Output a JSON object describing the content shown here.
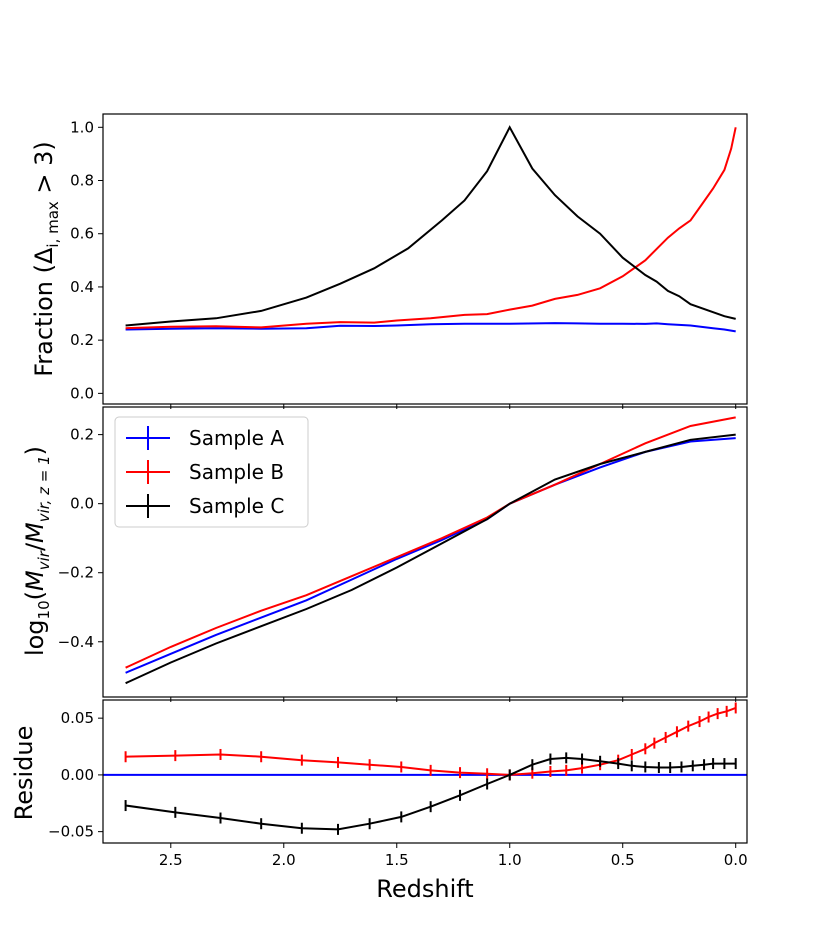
{
  "chart_data": [
    {
      "type": "line",
      "ylabel": "Fraction (Δ_{i, max} > 3)",
      "ylim": [
        -0.04,
        1.05
      ],
      "xlim": [
        2.8,
        -0.05
      ],
      "yticks": [
        "0.0",
        "0.2",
        "0.4",
        "0.6",
        "0.8",
        "1.0"
      ],
      "series": [
        {
          "name": "Sample A",
          "color": "#0000ff",
          "x": [
            2.7,
            2.5,
            2.3,
            2.1,
            1.9,
            1.75,
            1.6,
            1.5,
            1.35,
            1.2,
            1.0,
            0.8,
            0.7,
            0.6,
            0.5,
            0.4,
            0.35,
            0.3,
            0.2,
            0.1,
            0.05,
            0.0
          ],
          "y": [
            0.24,
            0.243,
            0.245,
            0.243,
            0.245,
            0.254,
            0.253,
            0.255,
            0.26,
            0.262,
            0.262,
            0.264,
            0.263,
            0.262,
            0.262,
            0.261,
            0.263,
            0.26,
            0.255,
            0.245,
            0.24,
            0.233
          ]
        },
        {
          "name": "Sample B",
          "color": "#ff0000",
          "x": [
            2.7,
            2.5,
            2.3,
            2.1,
            1.9,
            1.75,
            1.6,
            1.5,
            1.35,
            1.2,
            1.1,
            1.0,
            0.9,
            0.8,
            0.7,
            0.6,
            0.5,
            0.4,
            0.3,
            0.25,
            0.2,
            0.15,
            0.1,
            0.05,
            0.02,
            0.0
          ],
          "y": [
            0.245,
            0.25,
            0.252,
            0.248,
            0.262,
            0.268,
            0.266,
            0.274,
            0.282,
            0.295,
            0.298,
            0.315,
            0.33,
            0.355,
            0.37,
            0.395,
            0.44,
            0.5,
            0.585,
            0.62,
            0.65,
            0.71,
            0.77,
            0.84,
            0.92,
            1.0
          ]
        },
        {
          "name": "Sample C",
          "color": "#000000",
          "x": [
            2.7,
            2.5,
            2.3,
            2.1,
            1.9,
            1.75,
            1.6,
            1.45,
            1.3,
            1.2,
            1.1,
            1.0,
            0.9,
            0.8,
            0.7,
            0.6,
            0.5,
            0.4,
            0.35,
            0.3,
            0.25,
            0.2,
            0.1,
            0.05,
            0.0
          ],
          "y": [
            0.255,
            0.27,
            0.282,
            0.31,
            0.36,
            0.412,
            0.47,
            0.545,
            0.65,
            0.725,
            0.835,
            1.0,
            0.845,
            0.745,
            0.665,
            0.6,
            0.51,
            0.445,
            0.42,
            0.385,
            0.365,
            0.335,
            0.305,
            0.29,
            0.28
          ]
        }
      ]
    },
    {
      "type": "line",
      "ylabel": "log_{10}(M_{vir}/M_{vir, z=1})",
      "ylim": [
        -0.56,
        0.28
      ],
      "xlim": [
        2.8,
        -0.05
      ],
      "yticks": [
        "−0.4",
        "−0.2",
        "0.0",
        "0.2"
      ],
      "legend": {
        "location": "upper left",
        "entries": [
          "Sample A",
          "Sample B",
          "Sample C"
        ]
      },
      "series": [
        {
          "name": "Sample A",
          "color": "#0000ff",
          "x": [
            2.7,
            2.5,
            2.3,
            2.1,
            1.9,
            1.7,
            1.5,
            1.3,
            1.1,
            1.0,
            0.8,
            0.6,
            0.4,
            0.2,
            0.0
          ],
          "y": [
            -0.49,
            -0.435,
            -0.38,
            -0.33,
            -0.28,
            -0.22,
            -0.16,
            -0.105,
            -0.045,
            0.0,
            0.055,
            0.105,
            0.15,
            0.18,
            0.19
          ]
        },
        {
          "name": "Sample B",
          "color": "#ff0000",
          "x": [
            2.7,
            2.5,
            2.3,
            2.1,
            1.9,
            1.7,
            1.5,
            1.3,
            1.1,
            1.0,
            0.8,
            0.6,
            0.4,
            0.2,
            0.0
          ],
          "y": [
            -0.475,
            -0.415,
            -0.36,
            -0.31,
            -0.265,
            -0.21,
            -0.155,
            -0.1,
            -0.04,
            0.0,
            0.055,
            0.115,
            0.175,
            0.225,
            0.25
          ]
        },
        {
          "name": "Sample C",
          "color": "#000000",
          "x": [
            2.7,
            2.5,
            2.3,
            2.1,
            1.9,
            1.7,
            1.5,
            1.3,
            1.1,
            1.0,
            0.8,
            0.6,
            0.4,
            0.2,
            0.0
          ],
          "y": [
            -0.52,
            -0.46,
            -0.405,
            -0.355,
            -0.305,
            -0.25,
            -0.185,
            -0.115,
            -0.045,
            0.0,
            0.07,
            0.115,
            0.15,
            0.185,
            0.2
          ]
        }
      ]
    },
    {
      "type": "line",
      "ylabel": "Residue",
      "xlabel": "Redshift",
      "ylim": [
        -0.06,
        0.066
      ],
      "xlim": [
        2.8,
        -0.05
      ],
      "xticks": [
        2.5,
        2.0,
        1.5,
        1.0,
        0.5,
        0.0
      ],
      "xticklabels": [
        "2.5",
        "2.0",
        "1.5",
        "1.0",
        "0.5",
        "0.0"
      ],
      "yticks": [
        "−0.05",
        "0.00",
        "0.05"
      ],
      "series": [
        {
          "name": "Sample A",
          "color": "#0000ff",
          "x": [
            2.8,
            -0.05
          ],
          "y": [
            0.0,
            0.0
          ]
        },
        {
          "name": "Sample B",
          "color": "#ff0000",
          "errorbars": true,
          "x": [
            2.7,
            2.48,
            2.28,
            2.1,
            1.92,
            1.76,
            1.62,
            1.48,
            1.35,
            1.22,
            1.1,
            1.0,
            0.9,
            0.82,
            0.75,
            0.68,
            0.6,
            0.52,
            0.46,
            0.4,
            0.36,
            0.31,
            0.26,
            0.21,
            0.16,
            0.12,
            0.08,
            0.04,
            0.0
          ],
          "y": [
            0.016,
            0.017,
            0.018,
            0.016,
            0.013,
            0.011,
            0.009,
            0.007,
            0.004,
            0.002,
            0.001,
            0.0,
            0.0015,
            0.003,
            0.004,
            0.006,
            0.009,
            0.013,
            0.018,
            0.023,
            0.028,
            0.033,
            0.038,
            0.043,
            0.047,
            0.051,
            0.054,
            0.056,
            0.059
          ]
        },
        {
          "name": "Sample C",
          "color": "#000000",
          "errorbars": true,
          "x": [
            2.7,
            2.48,
            2.28,
            2.1,
            1.92,
            1.76,
            1.62,
            1.48,
            1.35,
            1.22,
            1.1,
            1.0,
            0.9,
            0.82,
            0.75,
            0.68,
            0.6,
            0.52,
            0.46,
            0.4,
            0.34,
            0.29,
            0.24,
            0.19,
            0.14,
            0.1,
            0.05,
            0.0
          ],
          "y": [
            -0.027,
            -0.033,
            -0.038,
            -0.043,
            -0.047,
            -0.048,
            -0.043,
            -0.037,
            -0.028,
            -0.018,
            -0.008,
            0.0,
            0.009,
            0.014,
            0.015,
            0.014,
            0.012,
            0.01,
            0.008,
            0.007,
            0.0065,
            0.0065,
            0.007,
            0.008,
            0.009,
            0.01,
            0.01,
            0.01
          ]
        }
      ]
    }
  ]
}
